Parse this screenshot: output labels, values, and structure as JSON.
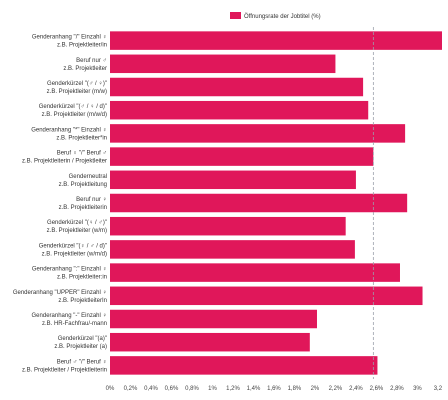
{
  "chart_data": {
    "type": "bar",
    "orientation": "horizontal",
    "categories": [
      [
        "Genderanhang \"/\" Einzahl ♀",
        "z.B. Projektleiter/in"
      ],
      [
        "Beruf nur ♂",
        "z.B. Projektleiter"
      ],
      [
        "Genderkürzel \"(♂ / ♀)\"",
        "z.B. Projektleiter (m/w)"
      ],
      [
        "Genderkürzel \"(♂ / ♀ / d)\"",
        "z.B. Projektleiter (m/w/d)"
      ],
      [
        "Genderanhang \"*\" Einzahl ♀",
        "z.B. Projektleiter*in"
      ],
      [
        "Beruf ♀ \"/\" Beruf ♂",
        "z.B. Projektleiterin / Projektleiter"
      ],
      [
        "Genderneutral",
        "z.B. Projektleitung"
      ],
      [
        "Beruf nur ♀",
        "z.B. Projektleiterin"
      ],
      [
        "Genderkürzel \"(♀ / ♂)\"",
        "z.B. Projektleiter (w/m)"
      ],
      [
        "Genderkürzel \"(♀ / ♂ / d)\"",
        "z.B. Projektleiter (w/m/d)"
      ],
      [
        "Genderanhang \":\" Einzahl ♀",
        "z.B. Projektleiter:in"
      ],
      [
        "Genderanhang \"UPPER\" Einzahl ♀",
        "z.B. ProjektleiterIn"
      ],
      [
        "Genderanhang \"-\" Einzahl ♀",
        "z.B. HR-Fachfrau/-mann"
      ],
      [
        "Genderkürzel \"(a)\"",
        "z.B. Projektleiter (a)"
      ],
      [
        "Beruf ♂ \"/\" Beruf ♀",
        "z.B. Projektleiter / Projektleiterin"
      ]
    ],
    "series": [
      {
        "name": "Öffnungsrate der Jobtitel (%)",
        "color": "#e0175a",
        "values": [
          3.24,
          2.2,
          2.47,
          2.52,
          2.88,
          2.57,
          2.4,
          2.9,
          2.3,
          2.39,
          2.83,
          3.05,
          2.02,
          1.95,
          2.61
        ]
      }
    ],
    "xlim": [
      0,
      3.24
    ],
    "x_ticks": [
      "0%",
      "0,2%",
      "0,4%",
      "0,6%",
      "0,8%",
      "1%",
      "1,2%",
      "1,4%",
      "1,6%",
      "1,8%",
      "2%",
      "2,2%",
      "2,4%",
      "2,6%",
      "2,8%",
      "3%",
      "3,2"
    ],
    "x_tick_values": [
      0,
      0.2,
      0.4,
      0.6,
      0.8,
      1.0,
      1.2,
      1.4,
      1.6,
      1.8,
      2.0,
      2.2,
      2.4,
      2.6,
      2.8,
      3.0,
      3.2
    ],
    "reference_line": {
      "value": 2.57,
      "style": "dashed"
    },
    "legend_position": "top",
    "grid": false
  }
}
